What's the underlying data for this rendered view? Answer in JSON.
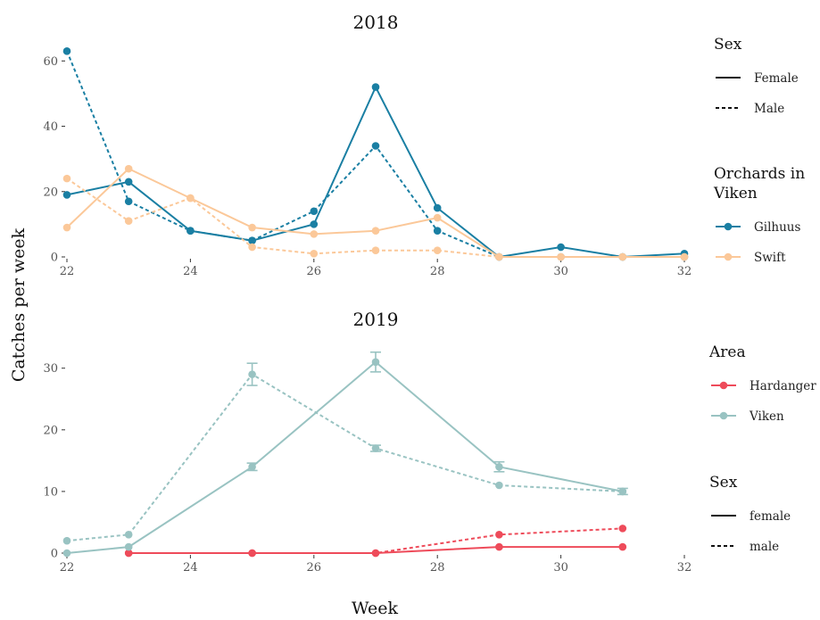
{
  "figure": {
    "ylabel": "Catches per week",
    "xlabel": "Week"
  },
  "colors": {
    "Gilhuus": "#1a7fa3",
    "Swift": "#fbc899",
    "Hardanger": "#ee4b5a",
    "Viken": "#99c3c2"
  },
  "chart_data": [
    {
      "type": "line",
      "title": "2018",
      "xlim": [
        22,
        32
      ],
      "ylim": [
        0,
        65
      ],
      "x_ticks": [
        22,
        24,
        26,
        28,
        30,
        32
      ],
      "y_ticks": [
        0,
        20,
        40,
        60
      ],
      "series": [
        {
          "name": "Gilhuus",
          "sex": "Female",
          "color_key": "Gilhuus",
          "dashed": false,
          "x": [
            22,
            23,
            24,
            25,
            26,
            27,
            28,
            29,
            30,
            31,
            32
          ],
          "y": [
            19,
            23,
            8,
            5,
            10,
            52,
            15,
            0,
            3,
            0,
            1
          ]
        },
        {
          "name": "Gilhuus",
          "sex": "Male",
          "color_key": "Gilhuus",
          "dashed": true,
          "x": [
            22,
            23,
            24,
            25,
            26,
            27,
            28,
            29,
            30,
            31,
            32
          ],
          "y": [
            63,
            17,
            8,
            5,
            14,
            34,
            8,
            0,
            0,
            0,
            0
          ]
        },
        {
          "name": "Swift",
          "sex": "Female",
          "color_key": "Swift",
          "dashed": false,
          "x": [
            22,
            23,
            24,
            25,
            26,
            27,
            28,
            29,
            30,
            31,
            32
          ],
          "y": [
            9,
            27,
            18,
            9,
            7,
            8,
            12,
            0,
            0,
            0,
            0
          ]
        },
        {
          "name": "Swift",
          "sex": "Male",
          "color_key": "Swift",
          "dashed": true,
          "x": [
            22,
            23,
            24,
            25,
            26,
            27,
            28,
            29,
            30,
            31,
            32
          ],
          "y": [
            24,
            11,
            18,
            3,
            1,
            2,
            2,
            0,
            0,
            0,
            0
          ]
        }
      ],
      "legends": [
        {
          "title": "Sex",
          "entries": [
            {
              "label": "Female",
              "dashed": false,
              "point": false
            },
            {
              "label": "Male",
              "dashed": true,
              "point": false
            }
          ]
        },
        {
          "title": "Orchards in Viken",
          "title_lines": [
            "Orchards in",
            "Viken"
          ],
          "entries": [
            {
              "label": "Gilhuus",
              "color_key": "Gilhuus",
              "dashed": false,
              "point": true
            },
            {
              "label": "Swift",
              "color_key": "Swift",
              "dashed": false,
              "point": true
            }
          ]
        }
      ]
    },
    {
      "type": "line",
      "title": "2019",
      "xlim": [
        22,
        32
      ],
      "ylim": [
        0,
        33
      ],
      "x_ticks": [
        22,
        24,
        26,
        28,
        30,
        32
      ],
      "y_ticks": [
        0,
        10,
        20,
        30
      ],
      "series": [
        {
          "name": "Hardanger",
          "sex": "female",
          "color_key": "Hardanger",
          "dashed": false,
          "x": [
            23,
            25,
            27,
            29,
            31
          ],
          "y": [
            0,
            0,
            0,
            1,
            1
          ]
        },
        {
          "name": "Hardanger",
          "sex": "male",
          "color_key": "Hardanger",
          "dashed": true,
          "x": [
            23,
            25,
            27,
            29,
            31
          ],
          "y": [
            0,
            0,
            0,
            3,
            4
          ]
        },
        {
          "name": "Viken",
          "sex": "female",
          "color_key": "Viken",
          "dashed": false,
          "x": [
            22,
            23,
            25,
            27,
            29,
            31
          ],
          "y": [
            0,
            1,
            14,
            31,
            14,
            10
          ],
          "err": [
            0,
            0,
            0.6,
            1.6,
            0.8,
            0.5
          ]
        },
        {
          "name": "Viken",
          "sex": "male",
          "color_key": "Viken",
          "dashed": true,
          "x": [
            22,
            23,
            25,
            27,
            29,
            31
          ],
          "y": [
            2,
            3,
            29,
            17,
            11,
            10
          ],
          "err": [
            0,
            0,
            1.8,
            0.5,
            0,
            0
          ]
        }
      ],
      "legends": [
        {
          "title": "Area",
          "entries": [
            {
              "label": "Hardanger",
              "color_key": "Hardanger",
              "dashed": false,
              "point": true
            },
            {
              "label": "Viken",
              "color_key": "Viken",
              "dashed": false,
              "point": true
            }
          ]
        },
        {
          "title": "Sex",
          "entries": [
            {
              "label": "female",
              "dashed": false,
              "point": false
            },
            {
              "label": "male",
              "dashed": true,
              "point": false
            }
          ]
        }
      ]
    }
  ]
}
